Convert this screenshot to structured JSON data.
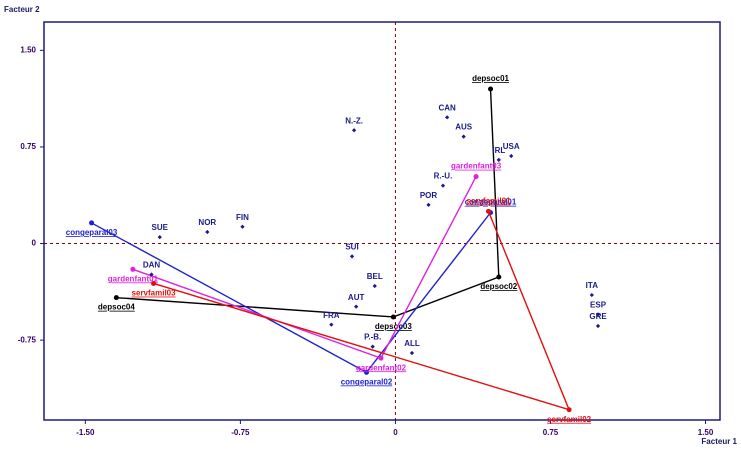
{
  "chart_data": {
    "type": "scatter",
    "x_label": "Facteur 1",
    "y_label": "Facteur 2",
    "xlim": [
      -1.7,
      1.57
    ],
    "ylim": [
      -1.37,
      1.72
    ],
    "xticks": [
      {
        "value": -1.5,
        "label": "-1.50"
      },
      {
        "value": -0.75,
        "label": "-0.75"
      },
      0,
      {
        "value": 0.75,
        "label": "0.75"
      },
      {
        "value": 1.5,
        "label": "1.50"
      }
    ],
    "yticks": [
      {
        "value": -0.75,
        "label": "-0.75"
      },
      0,
      {
        "value": 0.75,
        "label": "0.75"
      },
      {
        "value": 1.5,
        "label": "1.50"
      }
    ],
    "points": {
      "color": "#1a1a8c",
      "labels": [
        "N.-Z.",
        "CAN",
        "AUS",
        "IRL",
        "USA",
        "R.-U.",
        "POR",
        "SUE",
        "NOR",
        "FIN",
        "SUI",
        "BEL",
        "DAN",
        "AUT",
        "FRA",
        "P.-B.",
        "ALL",
        "ITA",
        "ESP",
        "GRE"
      ],
      "x": [
        -0.2,
        0.25,
        0.33,
        0.5,
        0.56,
        0.23,
        0.16,
        -1.14,
        -0.91,
        -0.74,
        -0.21,
        -0.1,
        -1.18,
        -0.19,
        -0.31,
        -0.11,
        0.08,
        0.95,
        0.98,
        0.98
      ],
      "y": [
        0.88,
        0.98,
        0.83,
        0.65,
        0.68,
        0.45,
        0.3,
        0.05,
        0.09,
        0.13,
        -0.1,
        -0.33,
        -0.24,
        -0.49,
        -0.63,
        -0.8,
        -0.85,
        -0.4,
        -0.55,
        -0.64
      ]
    },
    "trajectories": [
      {
        "color": "#000000",
        "labels": [
          "depsoc01",
          "depsoc02",
          "depsoc03",
          "depsoc04"
        ],
        "x": [
          0.46,
          0.5,
          -0.01,
          -1.35
        ],
        "y": [
          1.2,
          -0.26,
          -0.57,
          -0.42
        ]
      },
      {
        "color": "#2020d0",
        "labels": [
          "congeparal01",
          "congeparal02",
          "congeparal03"
        ],
        "x": [
          0.46,
          -0.14,
          -1.47
        ],
        "y": [
          0.24,
          -1.0,
          0.16
        ]
      },
      {
        "color": "#e020e0",
        "labels": [
          "gardenfant03",
          "gardenfant02",
          "gardenfant01"
        ],
        "x": [
          0.39,
          -0.07,
          -1.27
        ],
        "y": [
          0.52,
          -0.89,
          -0.2
        ]
      },
      {
        "color": "#e01010",
        "labels": [
          "servfamil01",
          "servfamil02",
          "servfamil03"
        ],
        "x": [
          0.45,
          0.84,
          -1.17
        ],
        "y": [
          0.25,
          -1.29,
          -0.31
        ]
      }
    ]
  }
}
